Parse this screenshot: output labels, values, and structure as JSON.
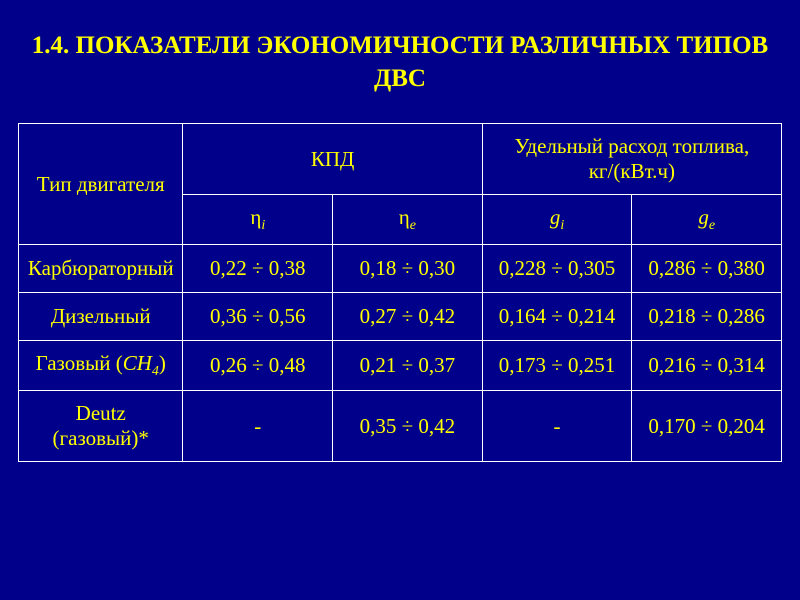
{
  "title": "1.4. ПОКАЗАТЕЛИ  ЭКОНОМИЧНОСТИ  РАЗЛИЧНЫХ ТИПОВ  ДВС",
  "colors": {
    "background": "#00008b",
    "text": "#ffff00",
    "border": "#ffffff"
  },
  "fonts": {
    "family": "Times New Roman",
    "title_size": 25,
    "cell_size": 21,
    "subscript_size": 14
  },
  "table": {
    "columns": [
      {
        "key": "type",
        "label": "Тип двигателя"
      },
      {
        "key": "kpd",
        "label": "КПД",
        "subcols": [
          "eta_i",
          "eta_e"
        ]
      },
      {
        "key": "fuel",
        "label": "Удельный расход топлива, кг/(кВт.ч)",
        "subcols": [
          "g_i",
          "g_e"
        ]
      }
    ],
    "sub_headers": {
      "eta_i": {
        "symbol": "η",
        "sub": "i"
      },
      "eta_e": {
        "symbol": "η",
        "sub": "e"
      },
      "g_i": {
        "symbol": "g",
        "sub": "i"
      },
      "g_e": {
        "symbol": "g",
        "sub": "e"
      }
    },
    "rows": [
      {
        "type": "Карбюраторный",
        "eta_i": "0,22 ÷ 0,38",
        "eta_e": "0,18 ÷ 0,30",
        "g_i": "0,228 ÷ 0,305",
        "g_e": "0,286 ÷ 0,380"
      },
      {
        "type": "Дизельный",
        "eta_i": "0,36 ÷ 0,56",
        "eta_e": "0,27 ÷ 0,42",
        "g_i": "0,164 ÷ 0,214",
        "g_e": "0,218 ÷ 0,286"
      },
      {
        "type_html": "Газовый (<span class='italic-part'>CH</span><span class='sub-4 italic-part'>4</span>)",
        "type": "Газовый (CH4)",
        "eta_i": "0,26 ÷ 0,48",
        "eta_e": "0,21 ÷ 0,37",
        "g_i": "0,173 ÷ 0,251",
        "g_e": "0,216 ÷ 0,314"
      },
      {
        "type": "Deutz (газовый)*",
        "eta_i": "-",
        "eta_e": "0,35 ÷ 0,42",
        "g_i": "-",
        "g_e": "0,170 ÷ 0,204"
      }
    ]
  }
}
